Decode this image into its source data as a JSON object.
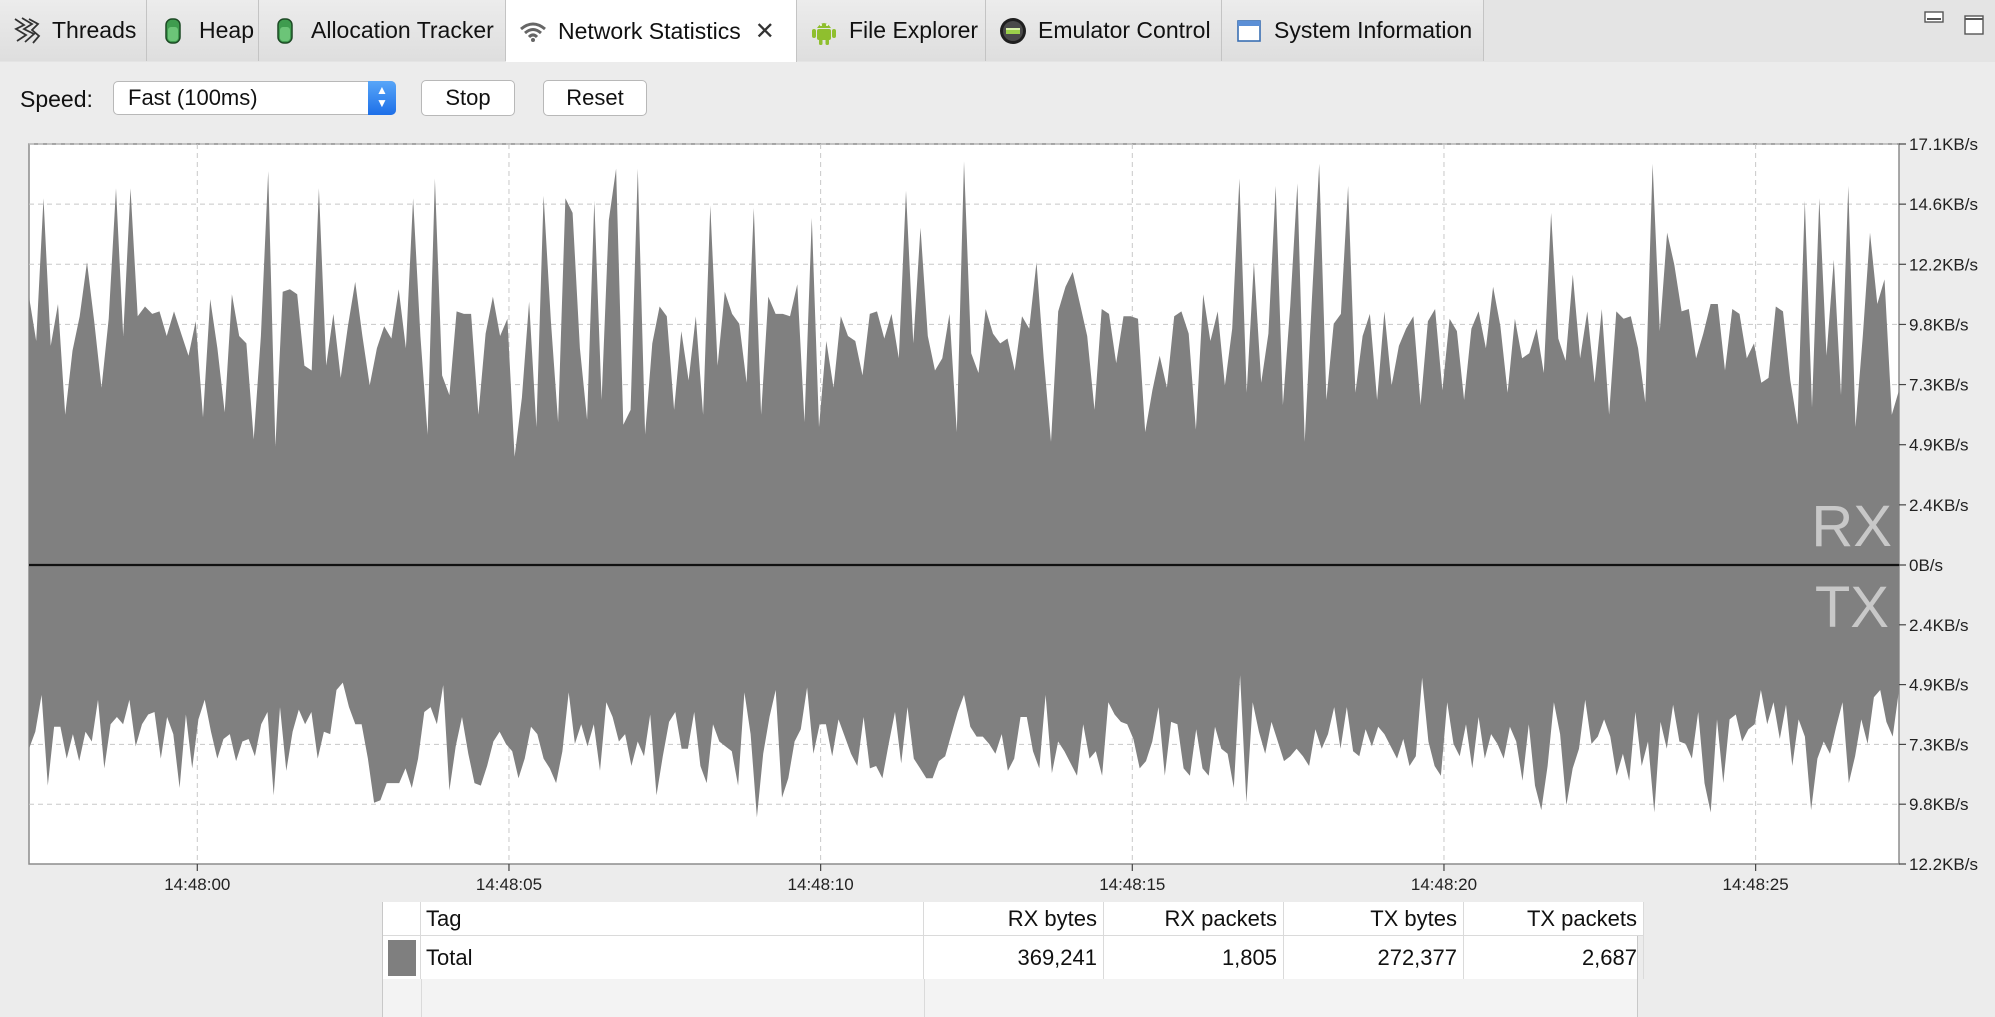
{
  "tabs": [
    {
      "label": "Threads",
      "icon": "threads-icon"
    },
    {
      "label": "Heap",
      "icon": "heap-icon"
    },
    {
      "label": "Allocation Tracker",
      "icon": "allocation-tracker-icon"
    },
    {
      "label": "Network Statistics",
      "icon": "wifi-icon",
      "active": true
    },
    {
      "label": "File Explorer",
      "icon": "android-icon"
    },
    {
      "label": "Emulator Control",
      "icon": "emulator-icon"
    },
    {
      "label": "System Information",
      "icon": "window-icon"
    }
  ],
  "toolbar": {
    "speed_label": "Speed:",
    "speed_value": "Fast (100ms)",
    "stop_label": "Stop",
    "reset_label": "Reset"
  },
  "chart_data": {
    "type": "area",
    "series": [
      {
        "name": "RX"
      },
      {
        "name": "TX"
      }
    ],
    "rx_label": "RX",
    "tx_label": "TX",
    "x_ticks": [
      "14:48:00",
      "14:48:05",
      "14:48:10",
      "14:48:15",
      "14:48:20",
      "14:48:25"
    ],
    "y_ticks_rx": [
      "17.1KB/s",
      "14.6KB/s",
      "12.2KB/s",
      "9.8KB/s",
      "7.3KB/s",
      "4.9KB/s",
      "2.4KB/s",
      "0B/s"
    ],
    "y_ticks_tx": [
      "2.4KB/s",
      "4.9KB/s",
      "7.3KB/s",
      "9.8KB/s",
      "12.2KB/s"
    ],
    "rx_range_kbs": [
      0,
      17.1
    ],
    "tx_range_kbs": [
      0,
      12.2
    ],
    "x_range_s": [
      -2.7,
      27.3
    ],
    "grid": true,
    "rx_values_kbs": [
      10.9,
      9.1,
      14.9,
      8.9,
      10.6,
      6.1,
      8.7,
      10.1,
      12.3,
      9.9,
      7.2,
      10.0,
      15.3,
      9.3,
      15.3,
      10.1,
      10.5,
      10.2,
      10.3,
      9.3,
      10.3,
      9.4,
      8.5,
      9.9,
      6.0,
      10.8,
      8.8,
      6.2,
      11.0,
      9.3,
      9.0,
      5.1,
      9.3,
      16.0,
      4.8,
      11.1,
      11.2,
      11.0,
      8.1,
      7.9,
      15.3,
      8.1,
      10.2,
      7.6,
      9.7,
      11.5,
      9.3,
      7.3,
      8.8,
      9.7,
      9.2,
      11.2,
      8.8,
      14.9,
      9.3,
      5.3,
      15.7,
      7.7,
      6.9,
      10.3,
      10.2,
      10.2,
      6.1,
      9.4,
      10.9,
      9.3,
      10.0,
      4.4,
      6.8,
      10.7,
      5.6,
      15.0,
      9.9,
      5.8,
      14.9,
      14.3,
      8.8,
      5.9,
      14.8,
      6.7,
      14.0,
      16.1,
      5.7,
      6.3,
      16.1,
      5.3,
      9.0,
      10.5,
      10.1,
      6.3,
      9.5,
      7.5,
      10.1,
      6.1,
      14.6,
      8.1,
      11.1,
      10.2,
      9.8,
      7.4,
      14.5,
      6.1,
      10.9,
      10.2,
      10.2,
      10.1,
      11.4,
      5.8,
      14.1,
      5.6,
      9.1,
      7.2,
      10.1,
      9.3,
      9.1,
      7.7,
      10.2,
      10.3,
      9.2,
      10.2,
      8.4,
      15.2,
      9.0,
      13.7,
      9.3,
      7.9,
      8.4,
      10.2,
      5.4,
      16.4,
      8.6,
      7.8,
      10.4,
      9.4,
      9.0,
      9.2,
      7.9,
      10.1,
      9.6,
      12.3,
      8.4,
      5.0,
      10.3,
      11.3,
      11.9,
      10.6,
      9.3,
      6.3,
      10.4,
      10.2,
      8.2,
      10.1,
      10.1,
      10.0,
      5.4,
      7.1,
      8.5,
      7.2,
      10.1,
      10.3,
      9.4,
      5.5,
      11.0,
      9.1,
      10.3,
      7.3,
      9.6,
      15.7,
      7.0,
      12.3,
      7.4,
      9.4,
      15.4,
      6.5,
      10.5,
      15.5,
      5.0,
      10.8,
      16.3,
      6.7,
      9.8,
      10.2,
      15.4,
      7.0,
      9.3,
      10.2,
      6.7,
      10.3,
      7.3,
      8.9,
      9.6,
      10.1,
      6.5,
      9.9,
      10.4,
      7.1,
      10.0,
      9.5,
      6.7,
      9.6,
      10.3,
      8.8,
      11.3,
      9.7,
      7.0,
      10.0,
      8.4,
      8.6,
      9.6,
      7.8,
      14.3,
      9.2,
      8.3,
      11.8,
      8.4,
      10.3,
      7.4,
      10.4,
      6.1,
      10.3,
      10.0,
      10.1,
      8.8,
      6.6,
      16.3,
      9.5,
      13.5,
      12.2,
      10.3,
      10.4,
      8.4,
      9.4,
      10.6,
      10.6,
      7.9,
      10.4,
      10.2,
      8.4,
      9.0,
      7.4,
      7.6,
      10.5,
      10.3,
      7.5,
      5.7,
      14.8,
      6.4,
      14.9,
      8.5,
      12.4,
      6.9,
      15.4,
      5.6,
      9.3,
      13.5,
      10.6,
      11.6,
      6.1,
      7.1
    ],
    "tx_values_kbs": [
      7.5,
      6.8,
      5.3,
      9.0,
      6.6,
      6.6,
      7.9,
      6.9,
      8.0,
      6.8,
      7.2,
      5.5,
      8.3,
      6.5,
      6.2,
      6.5,
      5.5,
      7.4,
      6.5,
      6.1,
      6.0,
      7.9,
      6.2,
      6.9,
      9.1,
      6.1,
      8.3,
      6.3,
      5.5,
      6.8,
      7.9,
      7.1,
      6.9,
      8.0,
      7.2,
      7.1,
      7.8,
      6.5,
      6.0,
      9.4,
      5.8,
      8.4,
      6.8,
      5.9,
      6.5,
      6.0,
      7.9,
      6.8,
      6.9,
      5.1,
      4.8,
      5.8,
      6.5,
      6.5,
      7.9,
      9.7,
      9.6,
      8.9,
      8.9,
      8.9,
      8.3,
      9.1,
      7.9,
      6.0,
      5.8,
      6.5,
      4.9,
      9.2,
      7.4,
      6.2,
      7.7,
      8.9,
      9.0,
      8.2,
      7.2,
      6.8,
      7.3,
      7.6,
      8.7,
      7.9,
      6.6,
      6.9,
      7.9,
      8.3,
      8.9,
      7.6,
      5.2,
      7.3,
      6.5,
      7.4,
      6.5,
      8.4,
      5.6,
      6.2,
      7.2,
      6.9,
      8.2,
      7.2,
      7.8,
      6.1,
      9.4,
      7.8,
      6.4,
      6.0,
      7.5,
      7.5,
      6.0,
      8.2,
      8.9,
      6.5,
      7.2,
      7.4,
      7.6,
      9.0,
      5.2,
      6.9,
      10.3,
      7.7,
      6.2,
      5.1,
      9.5,
      8.7,
      7.2,
      6.7,
      5.0,
      7.7,
      6.5,
      6.5,
      7.8,
      6.3,
      7.0,
      7.7,
      8.2,
      6.2,
      8.3,
      8.2,
      8.7,
      7.3,
      6.0,
      8.1,
      5.8,
      7.9,
      8.3,
      8.7,
      8.7,
      8.0,
      7.8,
      6.9,
      6.0,
      5.3,
      6.6,
      7.0,
      7.0,
      7.3,
      7.7,
      6.9,
      8.4,
      7.9,
      6.2,
      6.2,
      7.6,
      8.3,
      5.3,
      8.5,
      7.2,
      7.6,
      8.1,
      8.6,
      6.5,
      7.9,
      7.6,
      8.6,
      5.6,
      6.1,
      6.4,
      6.5,
      7.1,
      8.3,
      8.0,
      7.2,
      5.8,
      8.6,
      6.4,
      6.5,
      8.3,
      8.6,
      6.7,
      8.3,
      8.6,
      6.6,
      7.5,
      7.7,
      9.1,
      4.5,
      9.7,
      5.6,
      6.8,
      7.7,
      6.4,
      7.2,
      8.0,
      7.8,
      7.5,
      7.8,
      8.2,
      6.7,
      7.5,
      6.9,
      5.8,
      7.5,
      5.8,
      7.6,
      7.8,
      6.7,
      7.4,
      6.6,
      6.9,
      7.4,
      7.9,
      7.1,
      8.2,
      7.8,
      4.6,
      7.2,
      8.2,
      8.6,
      5.6,
      7.3,
      7.8,
      6.5,
      8.3,
      6.2,
      7.9,
      6.9,
      7.3,
      7.9,
      6.6,
      7.2,
      8.8,
      6.5,
      9.0,
      10.0,
      8.2,
      5.6,
      6.9,
      9.8,
      8.3,
      7.5,
      5.5,
      7.3,
      7.0,
      6.3,
      7.0,
      8.6,
      7.7,
      8.8,
      6.0,
      8.2,
      7.2,
      10.1,
      6.4,
      7.5,
      5.7,
      7.2,
      7.3,
      7.9,
      6.0,
      8.9,
      10.1,
      6.3,
      8.9,
      6.3,
      6.1,
      7.2,
      6.7,
      6.5,
      5.1,
      6.5,
      5.6,
      7.1,
      5.7,
      8.2,
      6.3,
      7.0,
      10.0,
      7.9,
      7.2,
      7.7,
      6.6,
      5.6,
      8.9,
      7.8,
      6.3,
      7.3,
      5.4,
      5.1,
      6.4,
      7.0,
      5.1
    ]
  },
  "table": {
    "headers": [
      "Tag",
      "RX bytes",
      "RX packets",
      "TX bytes",
      "TX packets"
    ],
    "rows": [
      {
        "color": "#7f7f7f",
        "tag": "Total",
        "rx_bytes": "369,241",
        "rx_packets": "1,805",
        "tx_bytes": "272,377",
        "tx_packets": "2,687"
      }
    ]
  }
}
